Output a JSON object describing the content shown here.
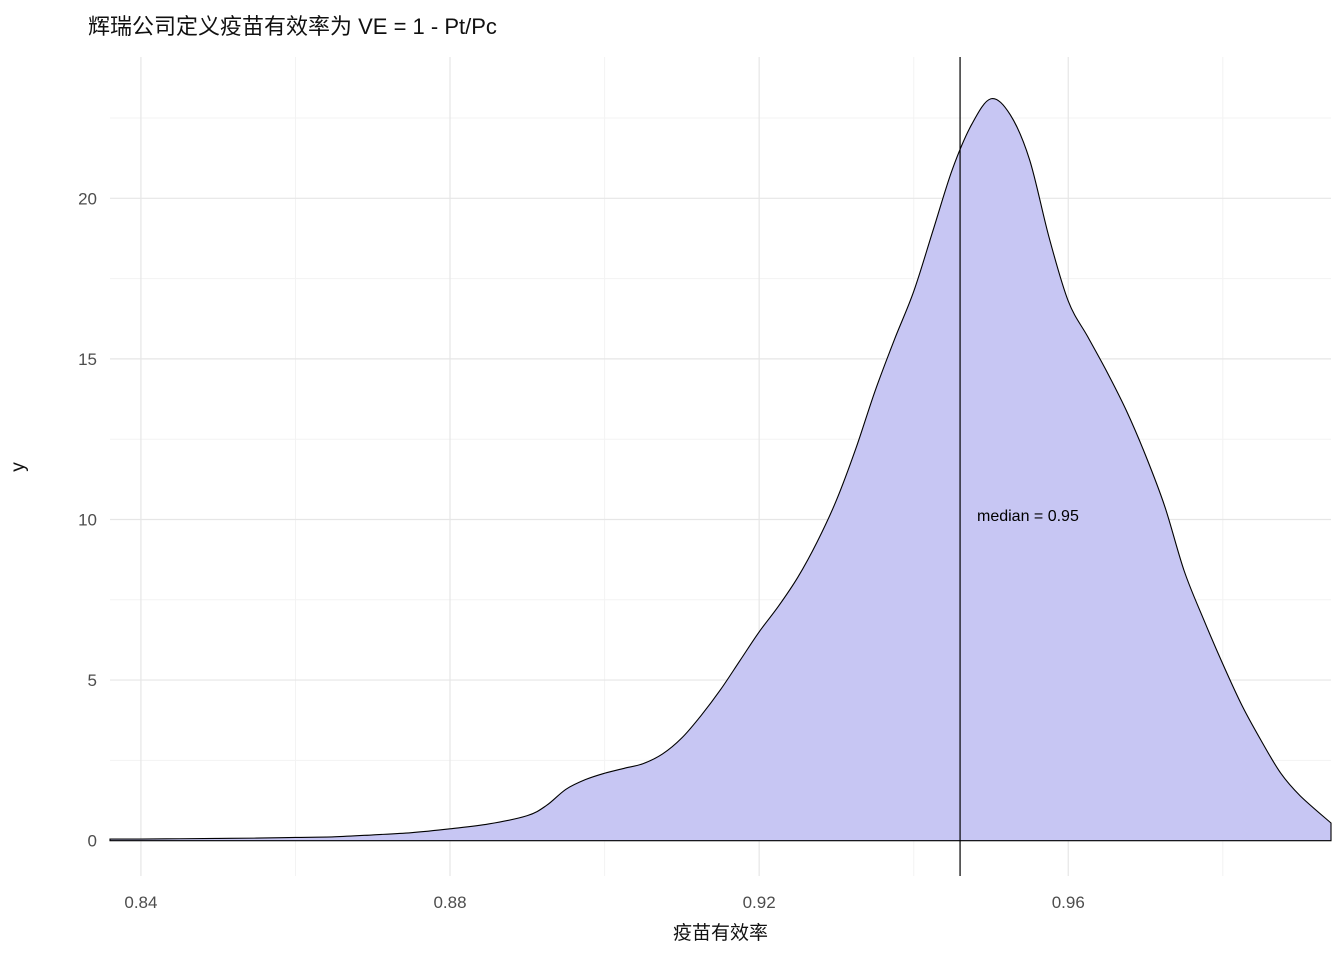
{
  "chart_data": {
    "type": "area",
    "title": "辉瑞公司定义疫苗有效率为 VE = 1 - Pt/Pc",
    "xlabel": "疫苗有效率",
    "ylabel": "y",
    "xlim": [
      0.836,
      0.994
    ],
    "ylim": [
      -1.1,
      24.4
    ],
    "x_ticks": [
      0.84,
      0.88,
      0.92,
      0.96
    ],
    "x_tick_labels": [
      "0.84",
      "0.88",
      "0.92",
      "0.96"
    ],
    "x_minor_ticks": [
      0.86,
      0.9,
      0.94,
      0.98
    ],
    "y_ticks": [
      0,
      5,
      10,
      15,
      20
    ],
    "y_tick_labels": [
      "0",
      "5",
      "10",
      "15",
      "20"
    ],
    "y_minor_ticks": [
      2.5,
      7.5,
      12.5,
      17.5,
      22.5
    ],
    "grid": true,
    "legend_position": "none",
    "median_line_x": 0.946,
    "annotation": {
      "text": "median = 0.95",
      "x": 0.9485,
      "y": 9.9
    },
    "series": [
      {
        "name": "density",
        "x": [
          0.836,
          0.84,
          0.845,
          0.85,
          0.855,
          0.86,
          0.865,
          0.87,
          0.875,
          0.88,
          0.885,
          0.89,
          0.8925,
          0.895,
          0.8975,
          0.9,
          0.9025,
          0.905,
          0.9075,
          0.91,
          0.9125,
          0.915,
          0.9175,
          0.92,
          0.9225,
          0.925,
          0.9275,
          0.93,
          0.9325,
          0.935,
          0.9375,
          0.94,
          0.9425,
          0.945,
          0.9475,
          0.95,
          0.9525,
          0.955,
          0.9575,
          0.96,
          0.9625,
          0.965,
          0.9675,
          0.97,
          0.9725,
          0.975,
          0.9775,
          0.98,
          0.9825,
          0.985,
          0.9875,
          0.99,
          0.994
        ],
        "y": [
          0.05,
          0.05,
          0.06,
          0.07,
          0.08,
          0.1,
          0.12,
          0.18,
          0.25,
          0.37,
          0.52,
          0.78,
          1.1,
          1.6,
          1.9,
          2.1,
          2.25,
          2.4,
          2.7,
          3.2,
          3.9,
          4.7,
          5.6,
          6.5,
          7.3,
          8.2,
          9.3,
          10.6,
          12.2,
          14.0,
          15.6,
          17.1,
          19.0,
          20.9,
          22.3,
          23.1,
          22.6,
          21.2,
          18.8,
          16.8,
          15.7,
          14.6,
          13.4,
          12.0,
          10.4,
          8.4,
          6.9,
          5.5,
          4.2,
          3.1,
          2.1,
          1.4,
          0.55
        ]
      }
    ],
    "colors": {
      "fill": "#c7c6f3",
      "stroke": "#000000",
      "grid_major": "#e6e6e6",
      "grid_minor": "#f3f3f3",
      "tick_label": "#4d4d4d",
      "vline": "#000000",
      "background": "#ffffff"
    }
  }
}
